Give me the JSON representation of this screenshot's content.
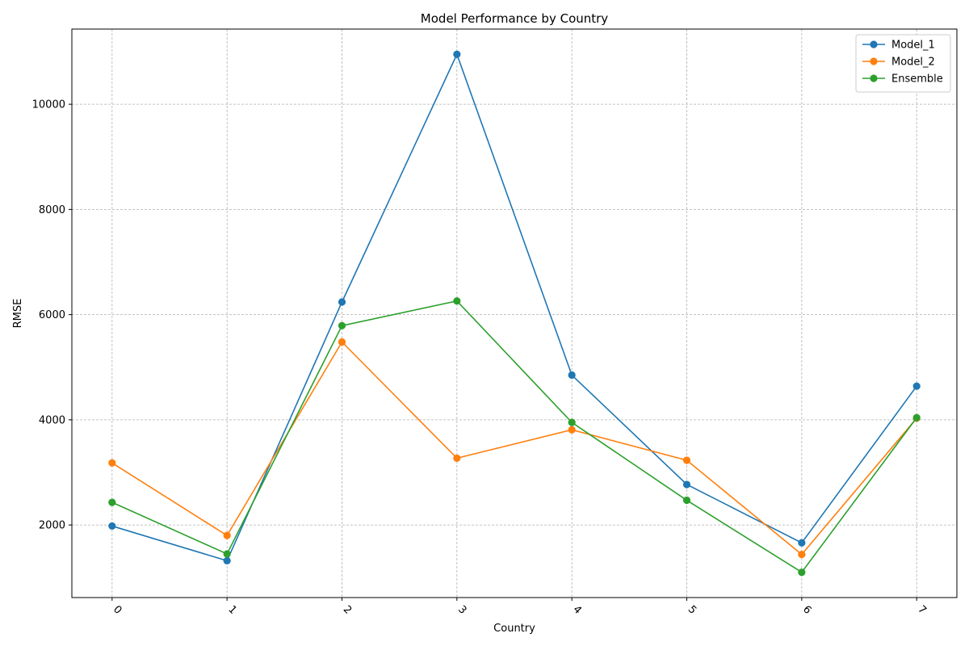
{
  "chart_data": {
    "type": "line",
    "title": "Model Performance by Country",
    "xlabel": "Country",
    "ylabel": "RMSE",
    "categories": [
      "0",
      "1",
      "2",
      "3",
      "4",
      "5",
      "6",
      "7"
    ],
    "xlim": [
      -0.35,
      7.35
    ],
    "ylim": [
      620,
      11430
    ],
    "yticks": [
      2000,
      4000,
      6000,
      8000,
      10000
    ],
    "grid": true,
    "legend_position": "top-right",
    "x_tick_rotation": "45deg",
    "series": [
      {
        "name": "Model_1",
        "color": "#1f77b4",
        "marker": "circle",
        "values": [
          1980,
          1320,
          6240,
          10950,
          4850,
          2770,
          1660,
          4640
        ]
      },
      {
        "name": "Model_2",
        "color": "#ff7f0e",
        "marker": "circle",
        "values": [
          3180,
          1800,
          5480,
          3270,
          3810,
          3230,
          1440,
          4030
        ]
      },
      {
        "name": "Ensemble",
        "color": "#2ca02c",
        "marker": "circle",
        "values": [
          2430,
          1450,
          5790,
          6260,
          3950,
          2470,
          1100,
          4040
        ]
      }
    ]
  }
}
